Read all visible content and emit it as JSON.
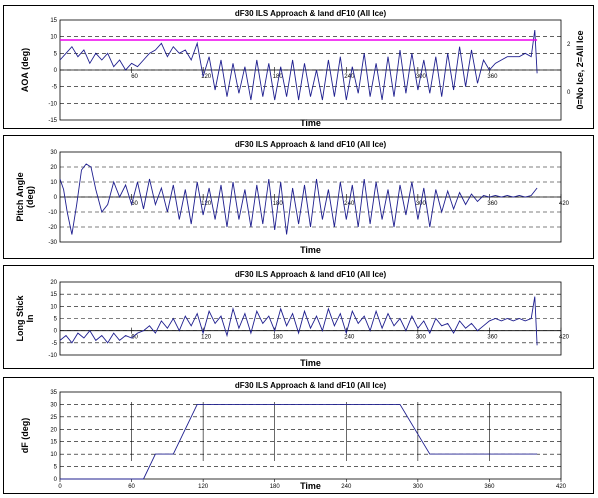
{
  "chart_data": [
    {
      "type": "line",
      "title": "dF30 ILS Approach & land dF10 (All Ice)",
      "xlabel": "Time",
      "ylabel": "AOA (deg)",
      "ylabel2": "0=No Ice, 2=All Ice",
      "xlim": [
        0,
        420
      ],
      "ylim": [
        -15,
        15
      ],
      "ylim2": [
        0,
        2
      ],
      "xticks": [
        "60",
        "120",
        "180",
        "240",
        "300",
        "360"
      ],
      "yticks": [
        "15",
        "10",
        "5",
        "0",
        "-5",
        "-10",
        "-15"
      ],
      "yticks2": [
        "2",
        "0"
      ],
      "grid": "horizontal dashed",
      "series": [
        {
          "color": "#1f1f8f",
          "x": [
            0,
            5,
            10,
            15,
            20,
            25,
            30,
            35,
            40,
            45,
            50,
            55,
            60,
            65,
            70,
            75,
            80,
            85,
            90,
            95,
            100,
            105,
            110,
            115,
            120,
            125,
            130,
            135,
            140,
            145,
            150,
            155,
            160,
            165,
            170,
            175,
            180,
            185,
            190,
            195,
            200,
            205,
            210,
            215,
            220,
            225,
            230,
            235,
            240,
            245,
            250,
            255,
            260,
            265,
            270,
            275,
            280,
            285,
            290,
            295,
            300,
            305,
            310,
            315,
            320,
            325,
            330,
            335,
            340,
            345,
            350,
            355,
            360,
            365,
            370,
            375,
            380,
            385,
            390,
            395,
            398,
            400
          ],
          "y": [
            3,
            5,
            7,
            4,
            6,
            2,
            5,
            3,
            5,
            1,
            3,
            0,
            2,
            1,
            3,
            5,
            6,
            8,
            4,
            7,
            5,
            6,
            3,
            8,
            -2,
            4,
            -6,
            3,
            -8,
            2,
            -7,
            1,
            -9,
            3,
            -8,
            2,
            -9,
            1,
            -8,
            3,
            -9,
            2,
            -8,
            0,
            -9,
            3,
            -8,
            4,
            -9,
            1,
            -7,
            5,
            -8,
            2,
            -9,
            4,
            -8,
            6,
            -7,
            5,
            -6,
            3,
            -7,
            4,
            -8,
            5,
            -6,
            7,
            -5,
            6,
            -4,
            3,
            0,
            2,
            3,
            4,
            4,
            4,
            5,
            4,
            12,
            -1
          ]
        },
        {
          "color": "#ee00ee",
          "x": [
            0,
            400
          ],
          "y": [
            9,
            9
          ]
        }
      ]
    },
    {
      "type": "line",
      "title": "dF30 ILS Approach & land dF10 (All Ice)",
      "xlabel": "Time",
      "ylabel": "Pitch Angle (deg)",
      "xlim": [
        0,
        420
      ],
      "ylim": [
        -30,
        30
      ],
      "xticks": [
        "60",
        "120",
        "180",
        "240",
        "300",
        "360",
        "420"
      ],
      "yticks": [
        "30",
        "20",
        "10",
        "0",
        "-10",
        "-20",
        "-30"
      ],
      "grid": "horizontal dashed",
      "series": [
        {
          "color": "#1f1f8f",
          "x": [
            0,
            3,
            6,
            10,
            14,
            18,
            22,
            26,
            30,
            35,
            40,
            45,
            50,
            55,
            60,
            65,
            70,
            75,
            80,
            85,
            90,
            95,
            100,
            105,
            110,
            115,
            120,
            125,
            130,
            135,
            140,
            145,
            150,
            155,
            160,
            165,
            170,
            175,
            180,
            185,
            190,
            195,
            200,
            205,
            210,
            215,
            220,
            225,
            230,
            235,
            240,
            245,
            250,
            255,
            260,
            265,
            270,
            275,
            280,
            285,
            290,
            295,
            300,
            305,
            310,
            315,
            320,
            325,
            330,
            335,
            340,
            345,
            350,
            355,
            360,
            365,
            370,
            375,
            380,
            385,
            390,
            395,
            400
          ],
          "y": [
            12,
            5,
            -10,
            -25,
            -5,
            18,
            22,
            20,
            5,
            -10,
            -5,
            10,
            0,
            8,
            -5,
            10,
            -8,
            12,
            -5,
            6,
            -10,
            8,
            -15,
            5,
            -18,
            10,
            -12,
            6,
            -15,
            8,
            -20,
            10,
            -15,
            5,
            -20,
            8,
            -18,
            12,
            -22,
            10,
            -25,
            6,
            -18,
            8,
            -20,
            12,
            -15,
            5,
            -20,
            10,
            -15,
            8,
            -20,
            12,
            -18,
            10,
            -15,
            5,
            -20,
            8,
            -12,
            10,
            -15,
            6,
            -20,
            5,
            -10,
            4,
            -8,
            3,
            -5,
            2,
            -3,
            1,
            0,
            1,
            0,
            1,
            0,
            1,
            0,
            1,
            6
          ]
        }
      ]
    },
    {
      "type": "line",
      "title": "dF30 ILS Approach & land dF10 (All Ice)",
      "xlabel": "Time",
      "ylabel": "Long Stick In",
      "xlim": [
        0,
        420
      ],
      "ylim": [
        -10,
        20
      ],
      "xticks": [
        "60",
        "120",
        "180",
        "240",
        "300",
        "360",
        "420"
      ],
      "yticks": [
        "20",
        "15",
        "10",
        "5",
        "0",
        "-5",
        "-10"
      ],
      "grid": "horizontal dashed",
      "series": [
        {
          "color": "#1f1f8f",
          "x": [
            0,
            5,
            10,
            15,
            20,
            25,
            30,
            35,
            40,
            45,
            50,
            55,
            60,
            65,
            70,
            75,
            80,
            85,
            90,
            95,
            100,
            105,
            110,
            115,
            120,
            125,
            130,
            135,
            140,
            145,
            150,
            155,
            160,
            165,
            170,
            175,
            180,
            185,
            190,
            195,
            200,
            205,
            210,
            215,
            220,
            225,
            230,
            235,
            240,
            245,
            250,
            255,
            260,
            265,
            270,
            275,
            280,
            285,
            290,
            295,
            300,
            305,
            310,
            315,
            320,
            325,
            330,
            335,
            340,
            345,
            350,
            355,
            360,
            365,
            370,
            375,
            380,
            385,
            390,
            395,
            398,
            400
          ],
          "y": [
            -4,
            -2,
            -5,
            -1,
            -3,
            0,
            -4,
            -2,
            -5,
            -1,
            -4,
            -2,
            -3,
            -1,
            0,
            2,
            -1,
            4,
            1,
            5,
            0,
            6,
            2,
            7,
            -1,
            8,
            3,
            6,
            -2,
            9,
            1,
            7,
            -1,
            8,
            3,
            6,
            0,
            9,
            2,
            7,
            -1,
            8,
            1,
            6,
            0,
            9,
            2,
            7,
            -1,
            8,
            3,
            6,
            0,
            8,
            1,
            7,
            2,
            5,
            0,
            6,
            1,
            4,
            -1,
            5,
            2,
            3,
            -1,
            4,
            1,
            3,
            0,
            2,
            4,
            5,
            4,
            5,
            4,
            5,
            4,
            5,
            14,
            -6
          ]
        }
      ]
    },
    {
      "type": "line",
      "title": "dF30 ILS Approach & land dF10 (All Ice)",
      "xlabel": "Time",
      "ylabel": "dF (deg)",
      "xlim": [
        0,
        420
      ],
      "ylim": [
        0,
        35
      ],
      "xticks": [
        "0",
        "60",
        "120",
        "180",
        "240",
        "300",
        "360",
        "420"
      ],
      "yticks": [
        "35",
        "30",
        "25",
        "20",
        "15",
        "10",
        "5",
        "0"
      ],
      "grid": "horizontal dashed",
      "series": [
        {
          "color": "#1f1f8f",
          "x": [
            0,
            70,
            80,
            95,
            115,
            285,
            310,
            400
          ],
          "y": [
            0,
            0,
            10,
            10,
            30,
            30,
            10,
            10
          ]
        }
      ]
    }
  ]
}
